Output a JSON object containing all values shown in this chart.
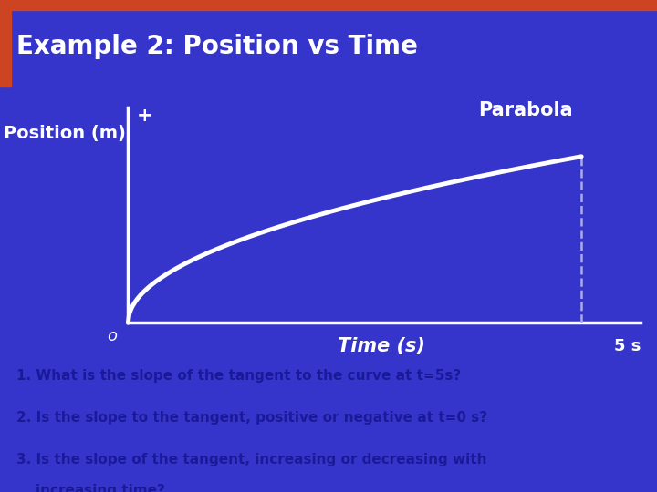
{
  "title": "Example 2: Position vs Time",
  "title_bg": "#2222bb",
  "title_fg": "#ffffff",
  "title_bar_color": "#cc4422",
  "graph_bg": "#3535cc",
  "bottom_bg": "#aaaaaa",
  "curve_color": "#ffffff",
  "axis_color": "#ffffff",
  "label_position_m": "Position (m)",
  "label_plus": "+",
  "label_time": "Time (s)",
  "label_parabola": "Parabola",
  "label_5s": "5 s",
  "label_o": "o",
  "question1": "1. What is the slope of the tangent to the curve at t=5s?",
  "question2": "2. Is the slope to the tangent, positive or negative at t=0 s?",
  "question3": "3. Is the slope of the tangent, increasing or decreasing with",
  "question3b": "    increasing time?",
  "dashed_color": "#aaaaee",
  "bottom_text_color": "#1a1a99"
}
